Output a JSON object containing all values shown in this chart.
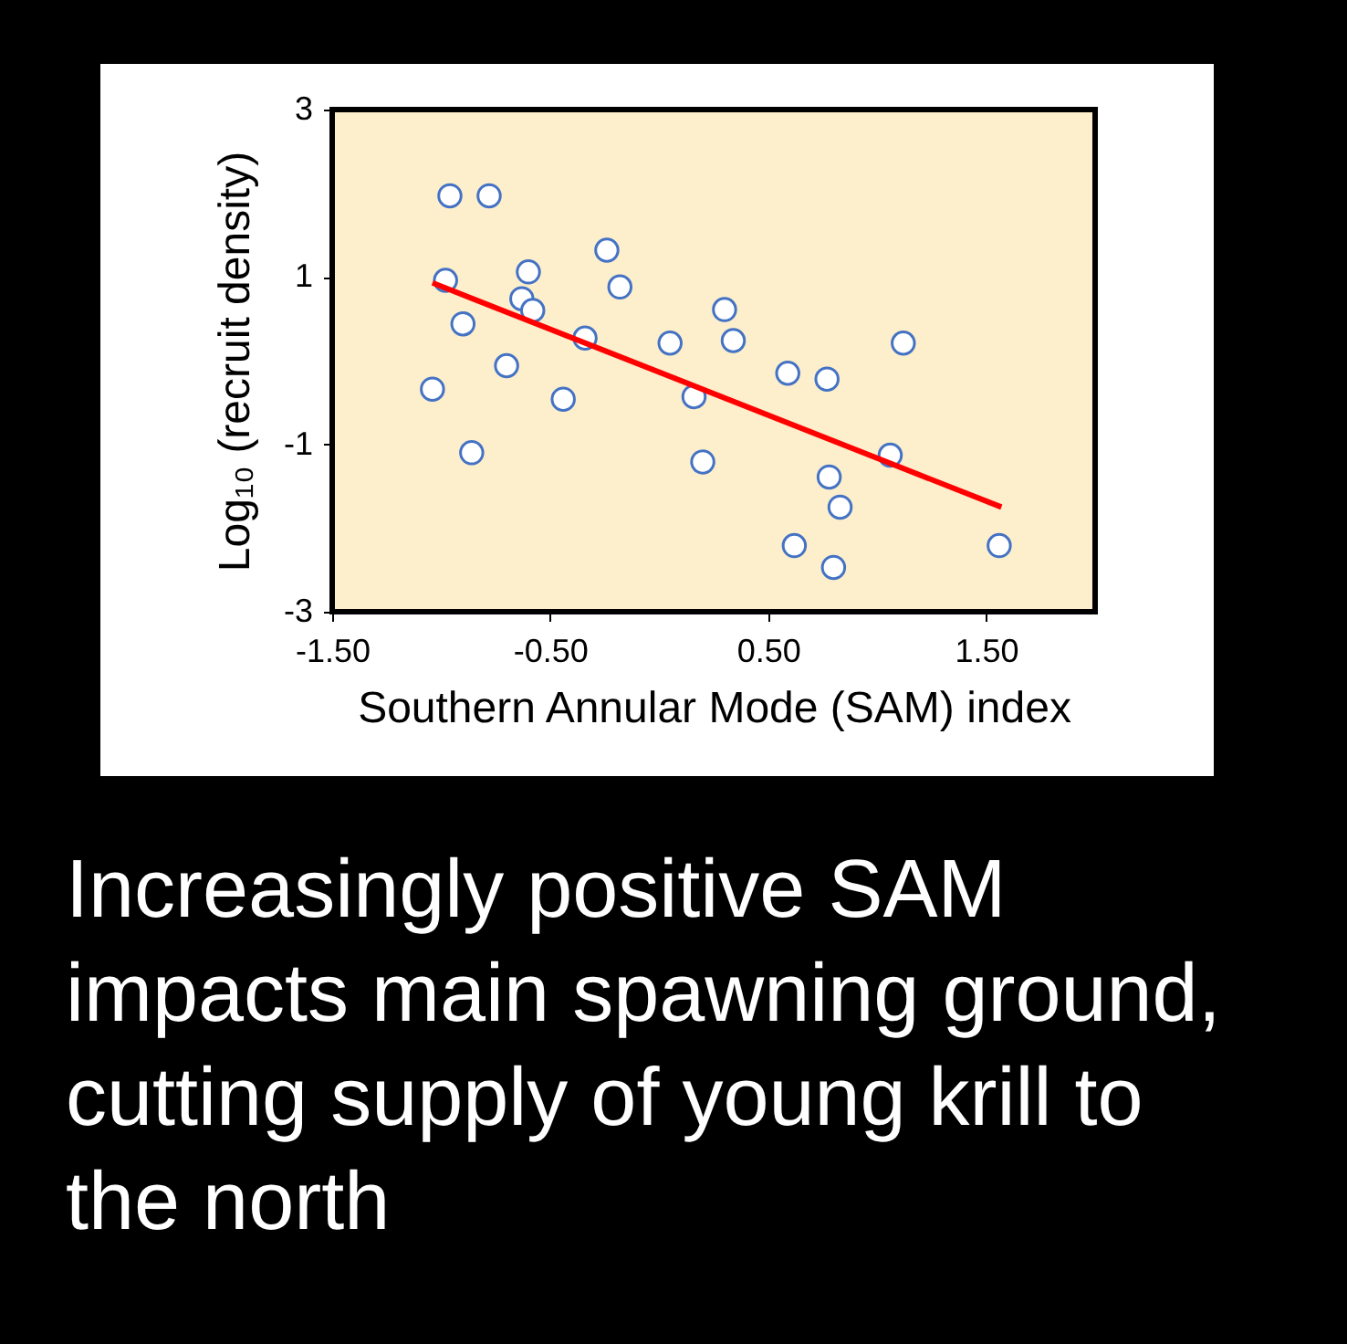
{
  "chart_data": {
    "type": "scatter",
    "xlabel": "Southern Annular Mode (SAM) index",
    "ylabel": "Log₁₀ (recruit density)",
    "xlim": [
      -1.5,
      2.0
    ],
    "xticks": [
      {
        "value": -1.5,
        "label": "-1.50"
      },
      {
        "value": -0.5,
        "label": "-0.50"
      },
      {
        "value": 0.5,
        "label": "0.50"
      },
      {
        "value": 1.5,
        "label": "1.50"
      }
    ],
    "ylim": [
      -3,
      3
    ],
    "yticks": [
      -3,
      -1,
      1,
      3
    ],
    "grid": false,
    "series": [
      {
        "type": "scatter",
        "marker": "circle",
        "color": "#4472c4",
        "x": [
          -0.96,
          -0.78,
          -0.98,
          -0.6,
          -0.24,
          -0.18,
          -0.63,
          -0.58,
          -0.9,
          -0.34,
          0.05,
          0.3,
          0.34,
          1.12,
          -0.7,
          0.59,
          0.77,
          -1.04,
          -0.44,
          0.16,
          -0.86,
          0.2,
          1.06,
          0.78,
          0.83,
          0.62,
          0.8,
          1.56
        ],
        "values": [
          1.97,
          1.97,
          0.96,
          1.06,
          1.32,
          0.88,
          0.74,
          0.6,
          0.44,
          0.27,
          0.21,
          0.61,
          0.24,
          0.21,
          -0.06,
          -0.15,
          -0.22,
          -0.34,
          -0.46,
          -0.43,
          -1.1,
          -1.21,
          -1.13,
          -1.39,
          -1.75,
          -2.21,
          -2.47,
          -2.21
        ]
      },
      {
        "type": "line",
        "marker": "none",
        "color": "#ff0000",
        "x": [
          -1.04,
          1.57
        ],
        "values": [
          0.93,
          -1.75
        ]
      }
    ],
    "annotations": [
      "Increasingly positive SAM\nimpacts main spawning ground,\ncutting supply of young krill to\nthe north"
    ]
  }
}
